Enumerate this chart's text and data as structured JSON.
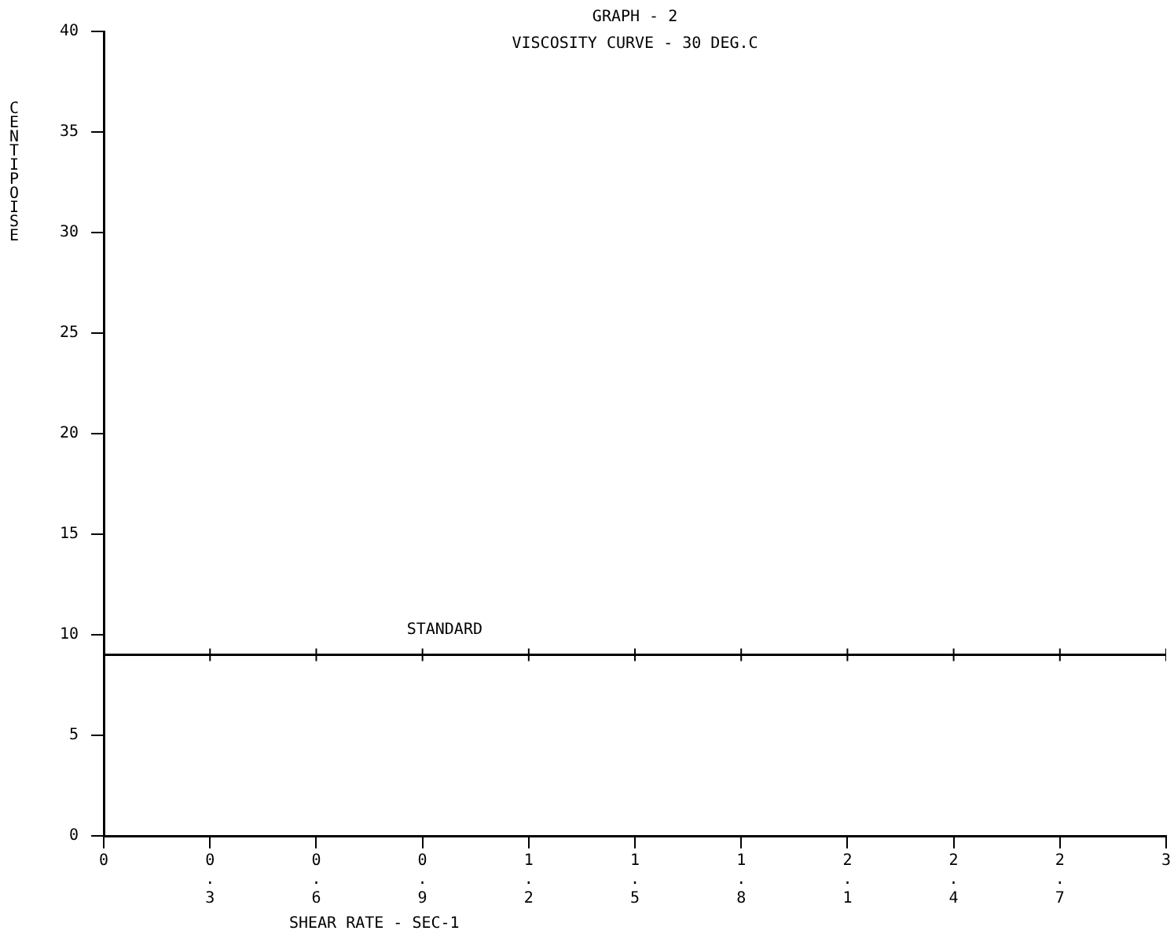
{
  "chart_data": {
    "type": "line",
    "title": "GRAPH - 2",
    "subtitle": "VISCOSITY CURVE - 30 DEG.C",
    "xlabel": "SHEAR RATE - SEC-1",
    "ylabel": "CENTIPOISE",
    "x": [
      0,
      0.3,
      0.6,
      0.9,
      1.2,
      1.5,
      1.8,
      2.1,
      2.4,
      2.7,
      3
    ],
    "series": [
      {
        "name": "STANDARD",
        "color": "#000000",
        "values": [
          9,
          9,
          9,
          9,
          9,
          9,
          9,
          9,
          9,
          9,
          9
        ]
      }
    ],
    "xlim": [
      0,
      3
    ],
    "xticks": [
      0,
      0.3,
      0.6,
      0.9,
      1.2,
      1.5,
      1.8,
      2.1,
      2.4,
      2.7,
      3
    ],
    "ylim": [
      0,
      40
    ],
    "yticks": [
      0,
      5,
      10,
      15,
      20,
      25,
      30,
      35,
      40
    ],
    "grid": false,
    "legend": false,
    "marker": "cross",
    "line_style": "solid"
  }
}
